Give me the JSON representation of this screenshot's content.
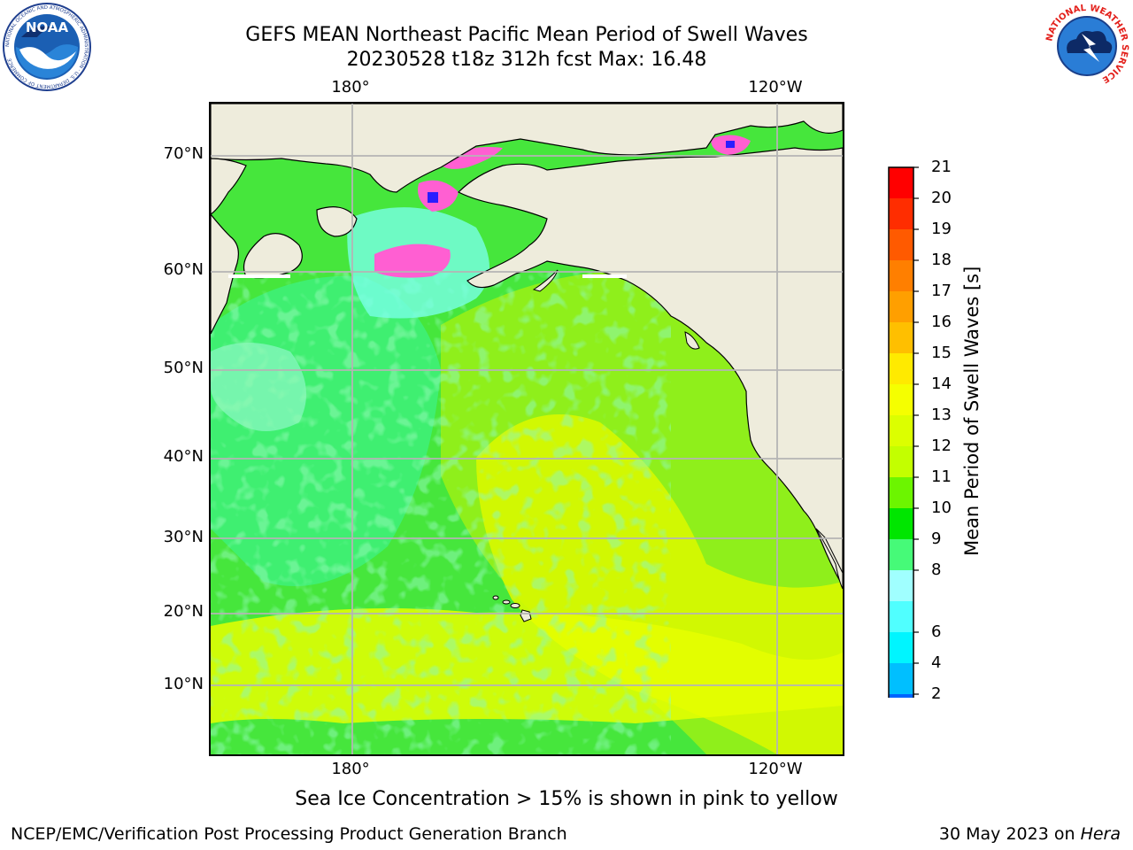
{
  "header": {
    "title_line1": "GEFS MEAN Northeast Pacific Mean Period of Swell Waves",
    "title_line2": "20230528 t18z 312h fcst   Max: 16.48"
  },
  "logos": {
    "left": {
      "icon": "noaa-logo-icon",
      "text": "NOAA",
      "ring_text": "NATIONAL OCEANIC AND ATMOSPHERIC ADMINISTRATION · U.S. DEPARTMENT OF COMMERCE"
    },
    "right": {
      "icon": "nws-logo-icon",
      "ring_text": "NATIONAL WEATHER SERVICE"
    }
  },
  "map": {
    "top_lon_labels": [
      "180°",
      "120°W"
    ],
    "bottom_lon_labels": [
      "180°",
      "120°W"
    ],
    "lat_labels": [
      "70°N",
      "60°N",
      "50°N",
      "40°N",
      "30°N",
      "20°N",
      "10°N"
    ],
    "colors": {
      "land": "#eeecdc",
      "coast": "#000000",
      "grid": "#b4b4b4"
    }
  },
  "colorbar": {
    "label": "Mean Period of Swell Waves [s]",
    "ticks": [
      "21",
      "20",
      "19",
      "18",
      "17",
      "16",
      "15",
      "14",
      "13",
      "12",
      "11",
      "10",
      "9",
      "8",
      "6",
      "4",
      "2"
    ],
    "colors_top_to_bottom": [
      "#ff0000",
      "#ff2d00",
      "#ff5a00",
      "#ff7f00",
      "#ff9f00",
      "#ffbf00",
      "#ffea00",
      "#f5ff00",
      "#dcff00",
      "#c3ff00",
      "#6cf500",
      "#00e600",
      "#46fa78",
      "#a0ffff",
      "#50ffff",
      "#00f5ff",
      "#00bfff",
      "#0064ff"
    ],
    "under_color": "#0000ff"
  },
  "notes": {
    "sea_ice": "Sea Ice Concentration > 15% is shown in pink to yellow"
  },
  "footer": {
    "left": "NCEP/EMC/Verification Post Processing Product Generation Branch",
    "date": "30 May 2023 on",
    "machine": "Hera"
  }
}
